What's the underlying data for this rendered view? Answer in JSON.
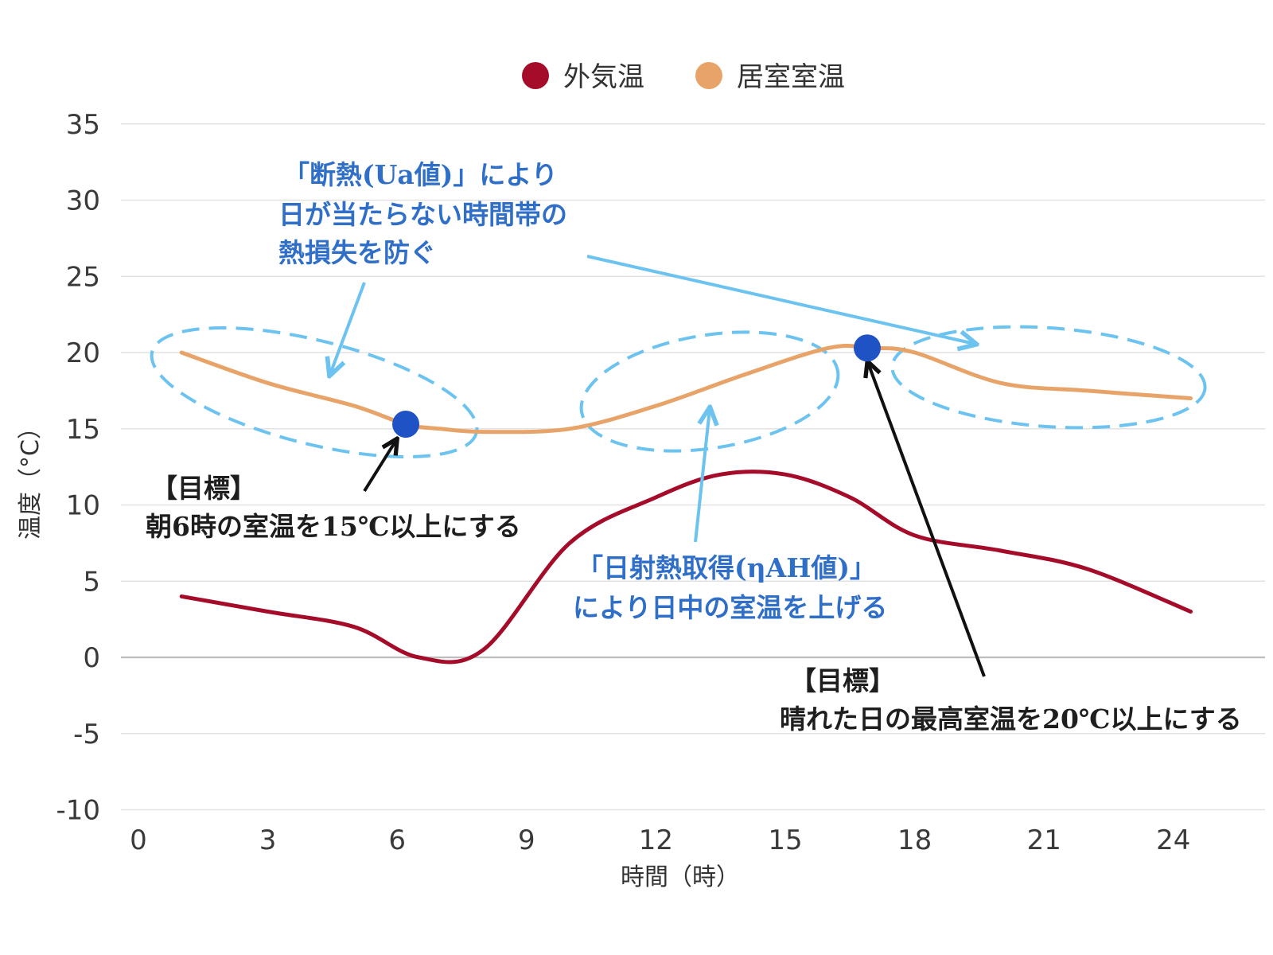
{
  "chart_data": {
    "type": "line",
    "xlabel": "時間（時）",
    "ylabel": "温度（°C）",
    "xlim": [
      0,
      26
    ],
    "ylim": [
      -10,
      35
    ],
    "x_ticks": [
      "0",
      "3",
      "6",
      "9",
      "12",
      "15",
      "18",
      "21",
      "24"
    ],
    "y_ticks": [
      "35",
      "30",
      "25",
      "20",
      "15",
      "10",
      "5",
      "0",
      "-5",
      "-10"
    ],
    "grid": true,
    "legend_position": "top-center",
    "series": [
      {
        "name": "外気温",
        "color": "#a50c2a",
        "x": [
          1,
          3,
          5,
          6.5,
          8,
          10,
          12,
          13.5,
          15,
          16.5,
          18,
          20,
          22,
          24.4
        ],
        "values": [
          4,
          3,
          2,
          0,
          0.5,
          7.5,
          10.5,
          12,
          12,
          10.5,
          8,
          7,
          5.8,
          3
        ]
      },
      {
        "name": "居室室温",
        "color": "#e8a468",
        "x": [
          1,
          3,
          5,
          6.2,
          7,
          8,
          10,
          12,
          14,
          16,
          17,
          18,
          20,
          22,
          24.4
        ],
        "values": [
          20,
          18,
          16.5,
          15.3,
          15,
          14.8,
          15,
          16.5,
          18.5,
          20.3,
          20.3,
          20,
          18,
          17.5,
          17
        ]
      }
    ],
    "markers": [
      {
        "x": 6.2,
        "y": 15.3,
        "color": "#1f52c4"
      },
      {
        "x": 16.9,
        "y": 20.3,
        "color": "#1f52c4"
      }
    ],
    "annotations": {
      "ua": [
        "「断熱(Ua値)」により",
        "日が当たらない時間帯の",
        "熱損失を防ぐ"
      ],
      "nah": [
        "「日射熱取得(ηAH値)」",
        "により日中の室温を上げる"
      ],
      "goal_morning": [
        "【目標】",
        "朝6時の室温を15℃以上にする"
      ],
      "goal_peak": [
        "【目標】",
        "晴れた日の最高室温を20℃以上にする"
      ]
    },
    "annotation_colors": {
      "blue_text": "#2f6fc8",
      "arrow_blue": "#6cc3f0",
      "ellipse": "#6cc3f0",
      "arrow_black": "#111111"
    }
  }
}
